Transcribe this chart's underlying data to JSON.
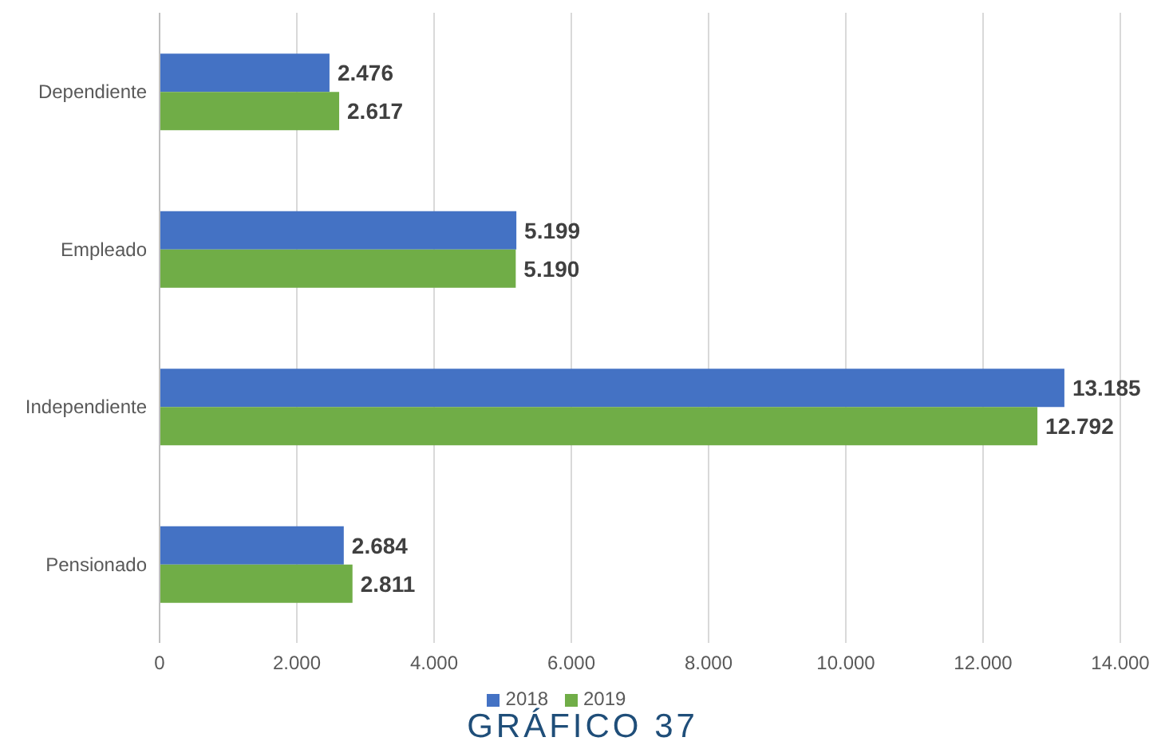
{
  "chart_data": {
    "type": "bar",
    "orientation": "horizontal",
    "categories": [
      "Dependiente",
      "Empleado",
      "Independiente",
      "Pensionado"
    ],
    "series": [
      {
        "name": "2018",
        "color": "#4472c4",
        "values": [
          2476,
          5199,
          13185,
          2684
        ],
        "value_labels": [
          "2.476",
          "5.199",
          "13.185",
          "2.684"
        ]
      },
      {
        "name": "2019",
        "color": "#70ad47",
        "values": [
          2617,
          5190,
          12792,
          2811
        ],
        "value_labels": [
          "2.617",
          "5.190",
          "12.792",
          "2.811"
        ]
      }
    ],
    "xlim": [
      0,
      14000
    ],
    "xticks": [
      0,
      {
        "value": 2000,
        "label": "2.000"
      },
      {
        "value": 4000,
        "label": "4.000"
      },
      {
        "value": 6000,
        "label": "6.000"
      },
      {
        "value": 8000,
        "label": "8.000"
      },
      {
        "value": 10000,
        "label": "10.000"
      },
      {
        "value": 12000,
        "label": "12.000"
      },
      {
        "value": 14000,
        "label": "14.000"
      }
    ],
    "grid": "x",
    "legend": "bottom",
    "annotations": [
      "GRÁFICO 37"
    ]
  }
}
